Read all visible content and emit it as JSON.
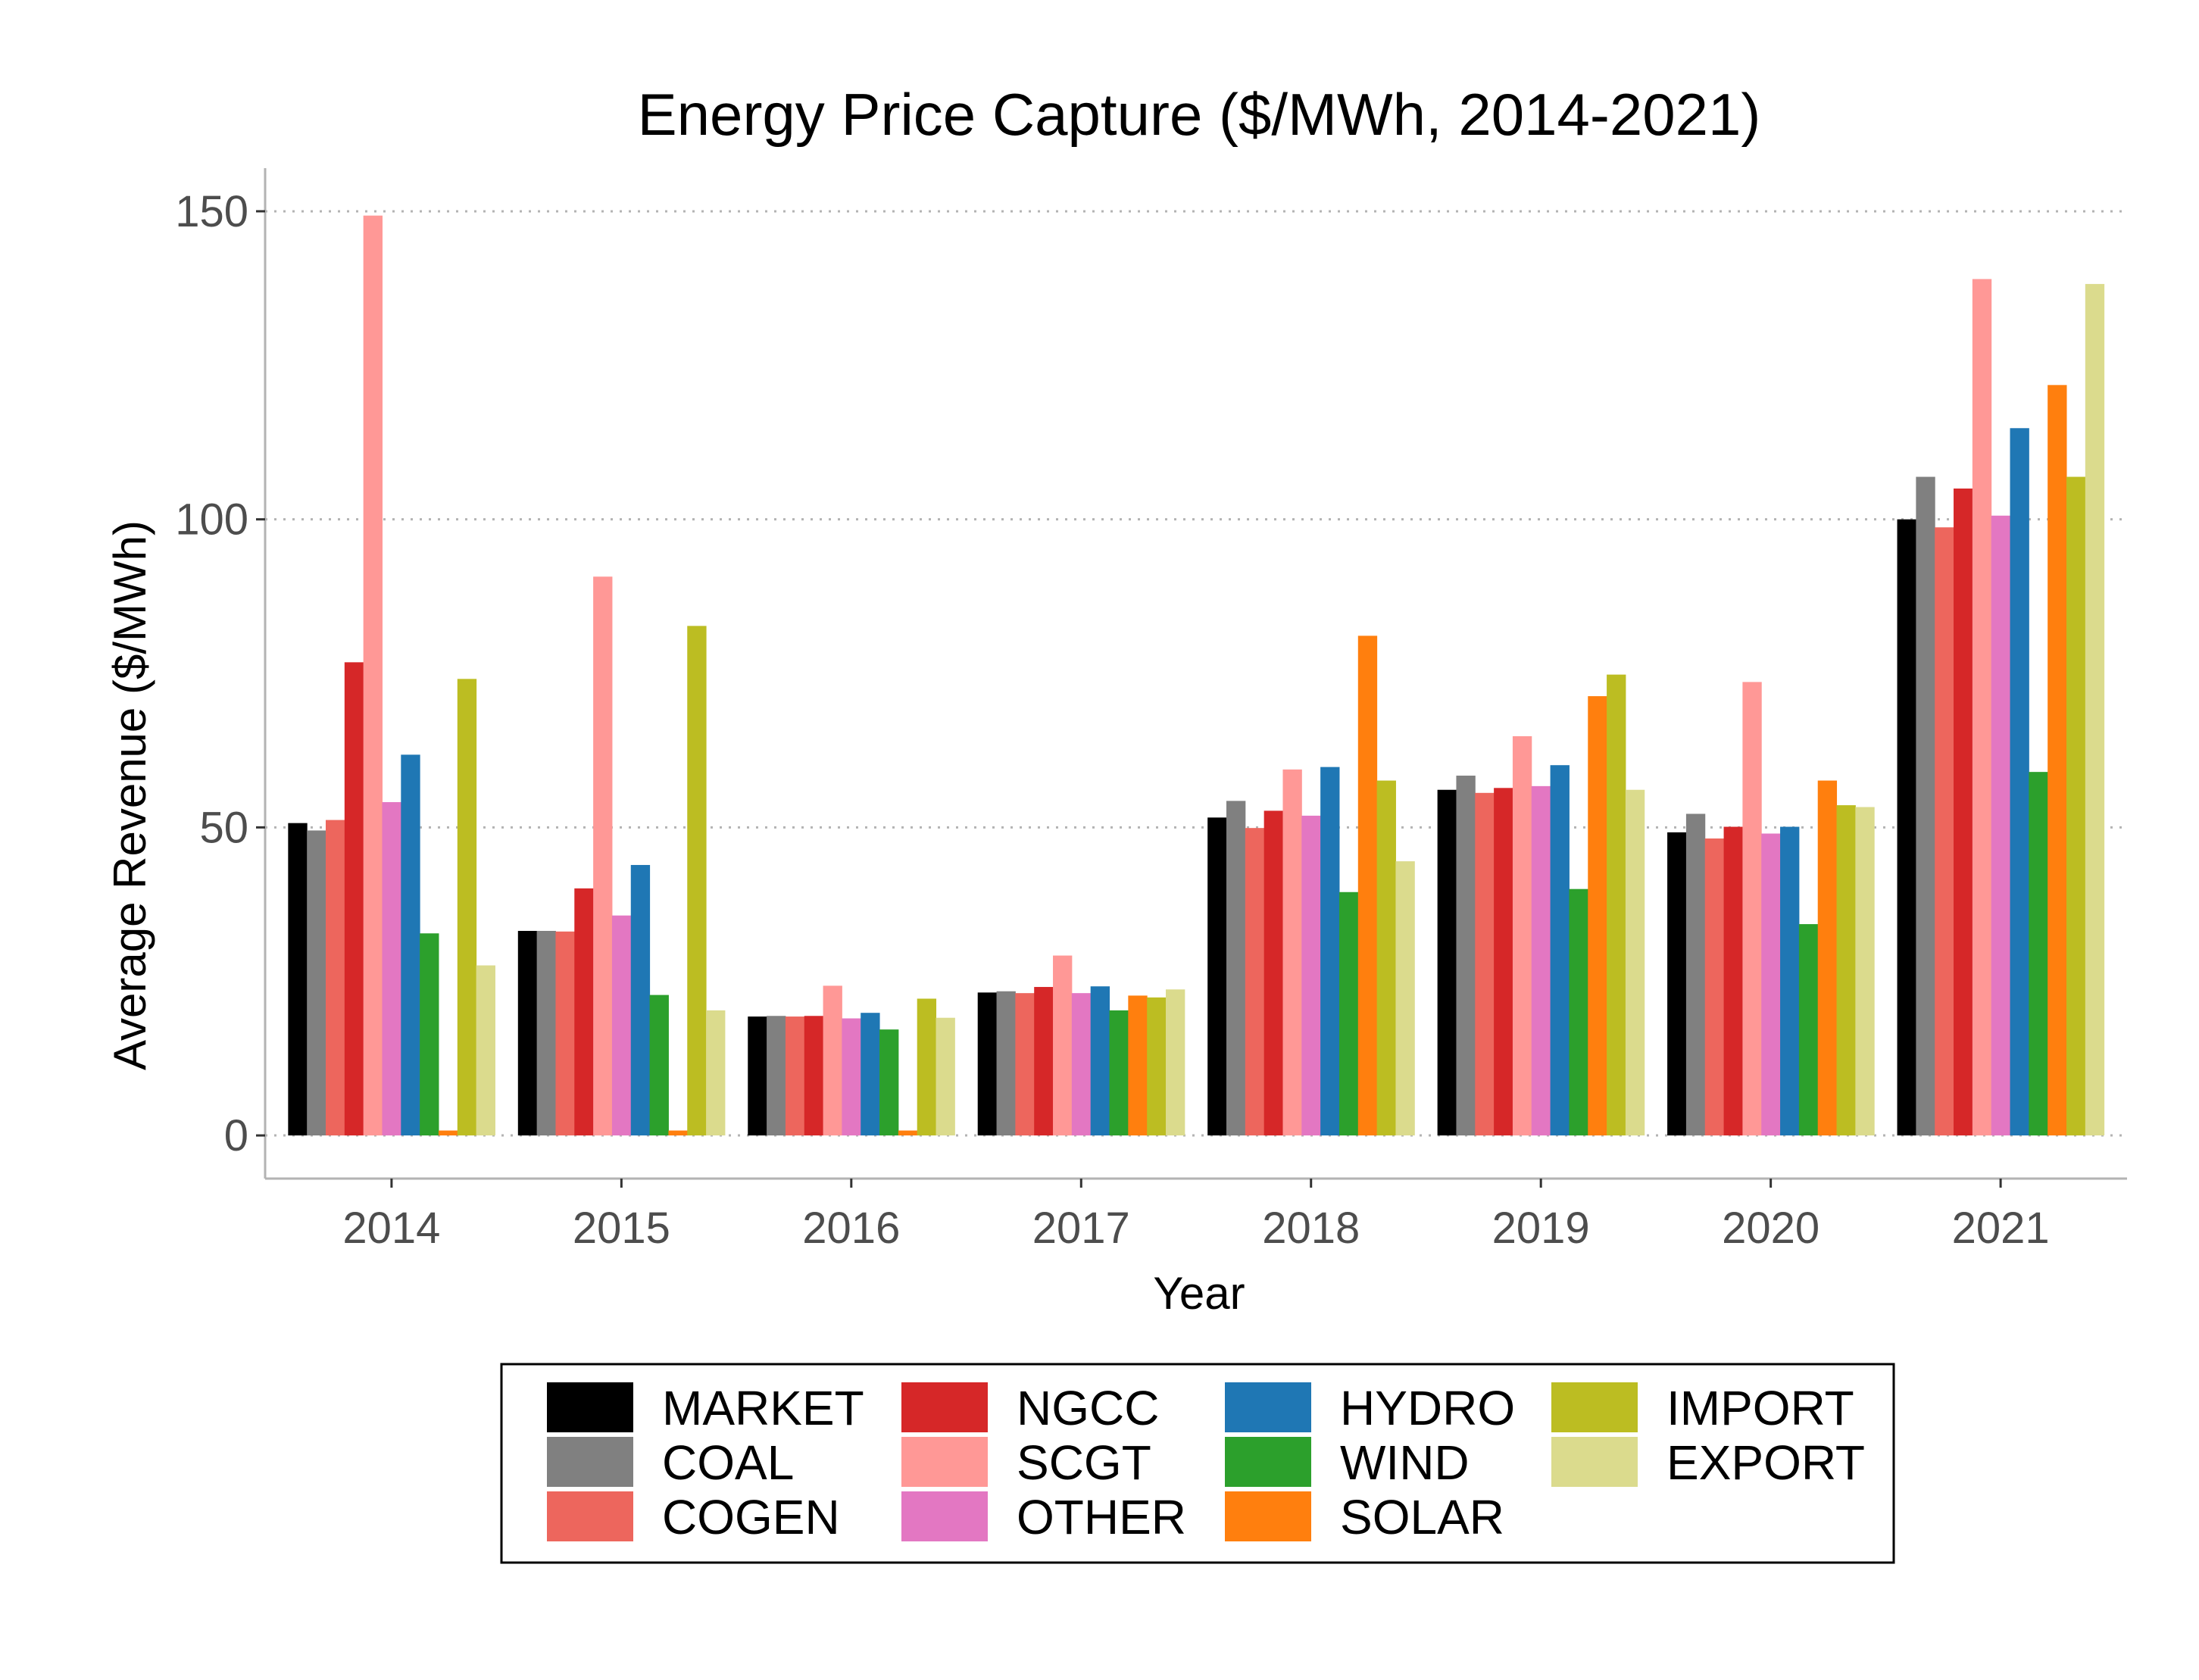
{
  "chart_data": {
    "type": "bar",
    "title": "Energy Price Capture ($/MWh, 2014-2021)",
    "xlabel": "Year",
    "ylabel": "Average Revenue ($/MWh)",
    "ylim": [
      -7,
      157
    ],
    "yticks": [
      0,
      50,
      100,
      150
    ],
    "grid": "horizontal dotted",
    "legend_position": "bottom",
    "categories": [
      "2014",
      "2015",
      "2016",
      "2017",
      "2018",
      "2019",
      "2020",
      "2021"
    ],
    "series": [
      {
        "name": "MARKET",
        "color": "#000000",
        "values": [
          50.7,
          33.2,
          19.3,
          23.2,
          51.6,
          56.1,
          49.2,
          100.0
        ]
      },
      {
        "name": "COAL",
        "color": "#808080",
        "values": [
          49.5,
          33.2,
          19.4,
          23.4,
          54.3,
          58.4,
          52.2,
          106.9
        ]
      },
      {
        "name": "COGEN",
        "color": "#ed665d",
        "values": [
          51.2,
          33.1,
          19.3,
          23.1,
          49.9,
          55.6,
          48.2,
          98.7
        ]
      },
      {
        "name": "NGCC",
        "color": "#d62728",
        "values": [
          76.8,
          40.1,
          19.4,
          24.1,
          52.7,
          56.4,
          50.1,
          105.0
        ]
      },
      {
        "name": "SCGT",
        "color": "#ff9896",
        "values": [
          149.3,
          90.7,
          24.3,
          29.2,
          59.4,
          64.8,
          73.6,
          139.0
        ]
      },
      {
        "name": "OTHER",
        "color": "#e377c2",
        "values": [
          54.1,
          35.7,
          19.0,
          23.1,
          51.9,
          56.7,
          49.0,
          100.6
        ]
      },
      {
        "name": "HYDRO",
        "color": "#1f77b4",
        "values": [
          61.8,
          43.9,
          19.9,
          24.2,
          59.8,
          60.1,
          50.1,
          114.8
        ]
      },
      {
        "name": "WIND",
        "color": "#2ca02c",
        "values": [
          32.8,
          22.8,
          17.2,
          20.3,
          39.5,
          40.0,
          34.3,
          59.0
        ]
      },
      {
        "name": "SOLAR",
        "color": "#ff7f0e",
        "values": [
          0.8,
          0.8,
          0.8,
          22.7,
          81.1,
          71.3,
          57.6,
          121.8
        ]
      },
      {
        "name": "IMPORT",
        "color": "#bcbd22",
        "values": [
          74.1,
          82.7,
          22.2,
          22.4,
          57.6,
          74.8,
          53.6,
          106.9
        ]
      },
      {
        "name": "EXPORT",
        "color": "#dbdb8d",
        "values": [
          27.6,
          20.3,
          19.1,
          23.7,
          44.5,
          56.1,
          53.3,
          138.2
        ]
      }
    ]
  }
}
